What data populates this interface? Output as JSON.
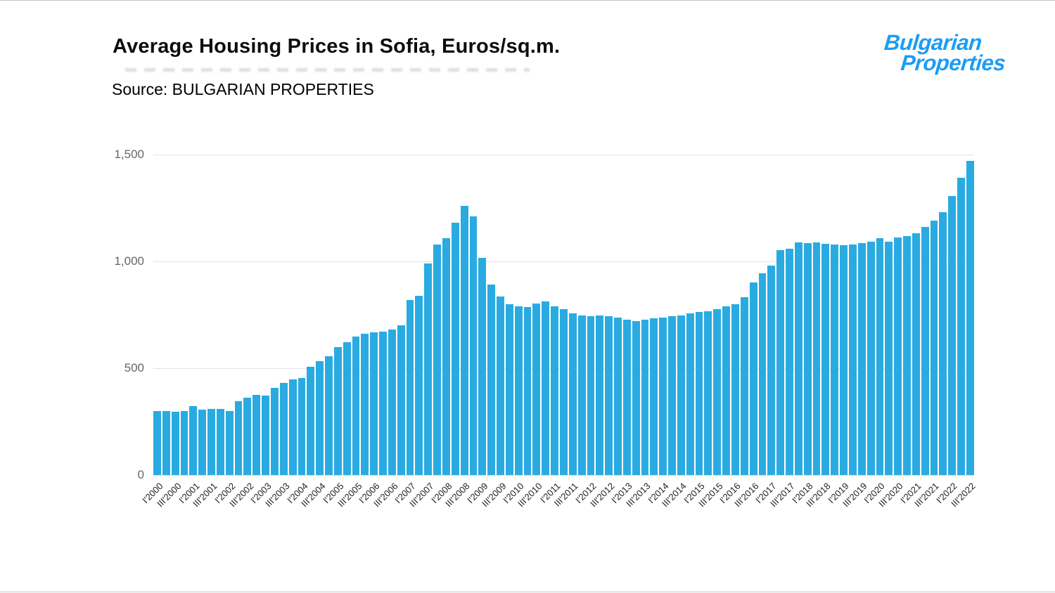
{
  "page": {
    "title": "Average Housing Prices in Sofia, Euros/sq.m.",
    "source": "Source: BULGARIAN PROPERTIES"
  },
  "logo": {
    "line1": "Bulgarian",
    "line2": "Properties",
    "color": "#1b9df5"
  },
  "chart_data": {
    "type": "bar",
    "title": "Average Housing Prices in Sofia, Euros/sq.m.",
    "xlabel": "",
    "ylabel": "",
    "ylim": [
      0,
      1500
    ],
    "bar_color": "#29abe2",
    "grid": "horizontal",
    "legend": "none",
    "yticks": [
      {
        "value": 0,
        "label": "0"
      },
      {
        "value": 500,
        "label": "500"
      },
      {
        "value": 1000,
        "label": "1,000"
      },
      {
        "value": 1500,
        "label": "1,500"
      }
    ],
    "xtick_every": 2,
    "categories": [
      "I'2000",
      "II'2000",
      "III'2000",
      "IV'2000",
      "I'2001",
      "II'2001",
      "III'2001",
      "IV'2001",
      "I'2002",
      "II'2002",
      "III'2002",
      "IV'2002",
      "I'2003",
      "II'2003",
      "III'2003",
      "IV'2003",
      "I'2004",
      "II'2004",
      "III'2004",
      "IV'2004",
      "I'2005",
      "II'2005",
      "III'2005",
      "IV'2005",
      "I'2006",
      "II'2006",
      "III'2006",
      "IV'2006",
      "I'2007",
      "II'2007",
      "III'2007",
      "IV'2007",
      "I'2008",
      "II'2008",
      "III'2008",
      "IV'2008",
      "I'2009",
      "II'2009",
      "III'2009",
      "IV'2009",
      "I'2010",
      "II'2010",
      "III'2010",
      "IV'2010",
      "I'2011",
      "II'2011",
      "III'2011",
      "IV'2011",
      "I'2012",
      "II'2012",
      "III'2012",
      "IV'2012",
      "I'2013",
      "II'2013",
      "III'2013",
      "IV'2013",
      "I'2014",
      "II'2014",
      "III'2014",
      "IV'2014",
      "I'2015",
      "II'2015",
      "III'2015",
      "IV'2015",
      "I'2016",
      "II'2016",
      "III'2016",
      "IV'2016",
      "I'2017",
      "II'2017",
      "III'2017",
      "IV'2017",
      "I'2018",
      "II'2018",
      "III'2018",
      "IV'2018",
      "I'2019",
      "II'2019",
      "III'2019",
      "IV'2019",
      "I'2020",
      "II'2020",
      "III'2020",
      "IV'2020",
      "I'2021",
      "II'2021",
      "III'2021",
      "IV'2021",
      "I'2022",
      "II'2022",
      "III'2022"
    ],
    "values": [
      298,
      300,
      296,
      300,
      322,
      306,
      308,
      310,
      301,
      345,
      362,
      375,
      372,
      408,
      432,
      448,
      455,
      505,
      532,
      556,
      600,
      622,
      648,
      662,
      668,
      672,
      681,
      700,
      820,
      838,
      990,
      1080,
      1110,
      1180,
      1260,
      1210,
      1015,
      890,
      835,
      800,
      790,
      786,
      802,
      812,
      790,
      778,
      756,
      748,
      742,
      748,
      745,
      738,
      728,
      722,
      728,
      732,
      736,
      742,
      748,
      758,
      762,
      768,
      776,
      788,
      800,
      832,
      900,
      945,
      980,
      1052,
      1058,
      1088,
      1086,
      1090,
      1083,
      1078,
      1075,
      1080,
      1086,
      1092,
      1108,
      1093,
      1112,
      1118,
      1132,
      1162,
      1192,
      1230,
      1305,
      1390,
      1470
    ]
  }
}
